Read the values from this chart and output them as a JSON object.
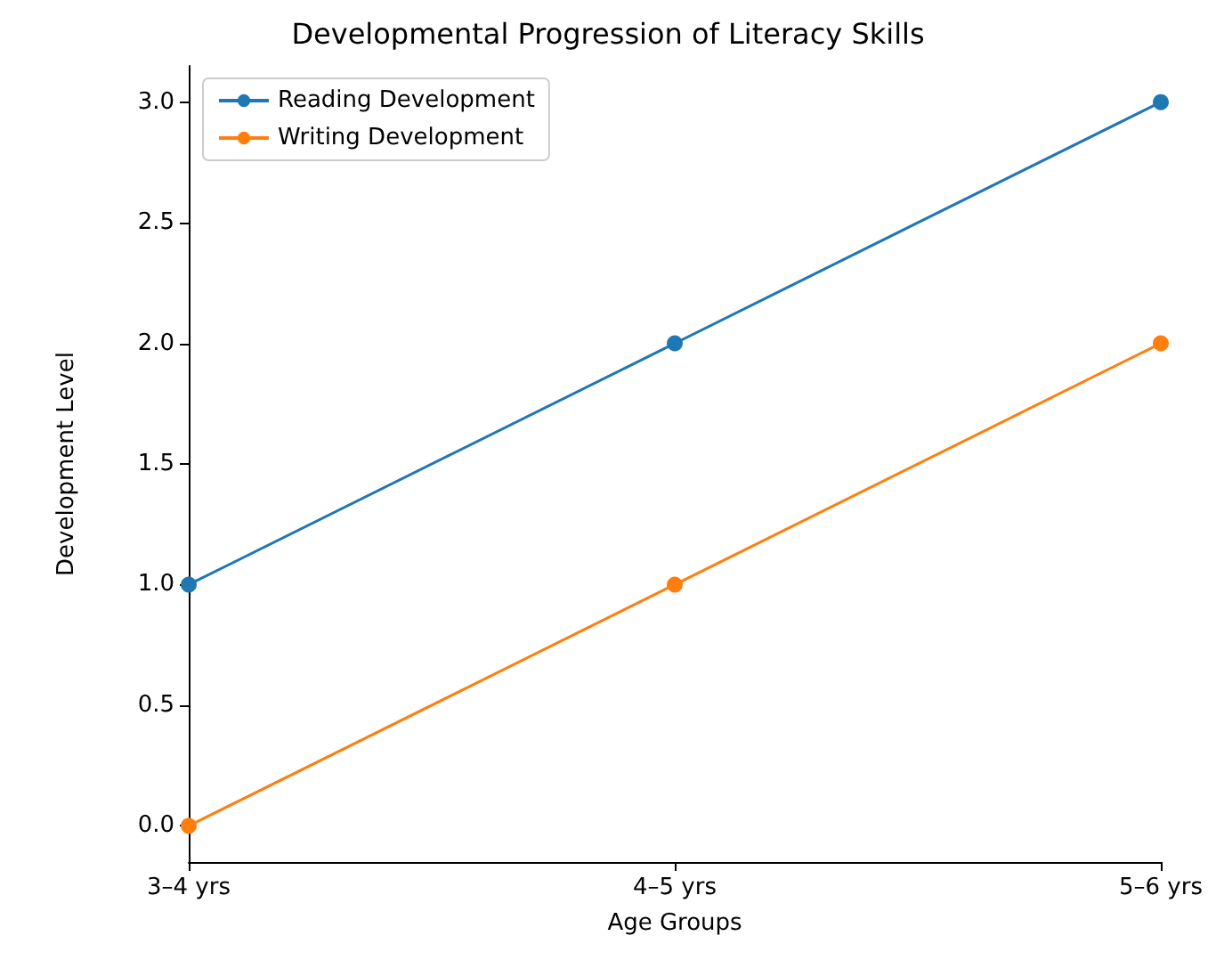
{
  "chart_data": {
    "type": "line",
    "title": "Developmental Progression of Literacy Skills",
    "xlabel": "Age Groups",
    "ylabel": "Development Level",
    "categories": [
      "3–4 yrs",
      "4–5 yrs",
      "5–6 yrs"
    ],
    "series": [
      {
        "name": "Reading Development",
        "color": "#1f77b4",
        "values": [
          1,
          2,
          3
        ]
      },
      {
        "name": "Writing Development",
        "color": "#ff7f0e",
        "values": [
          0,
          1,
          2
        ]
      }
    ],
    "ylim": [
      -0.15,
      3.15
    ],
    "yticks": [
      {
        "value": 0,
        "label": "0.0"
      },
      {
        "value": 0.5,
        "label": "0.5"
      },
      {
        "value": 1,
        "label": "1.0"
      },
      {
        "value": 1.5,
        "label": "1.5"
      },
      {
        "value": 2,
        "label": "2.0"
      },
      {
        "value": 2.5,
        "label": "2.5"
      },
      {
        "value": 3,
        "label": "3.0"
      }
    ],
    "legend": "top left",
    "marker": "circle",
    "grid": false
  }
}
